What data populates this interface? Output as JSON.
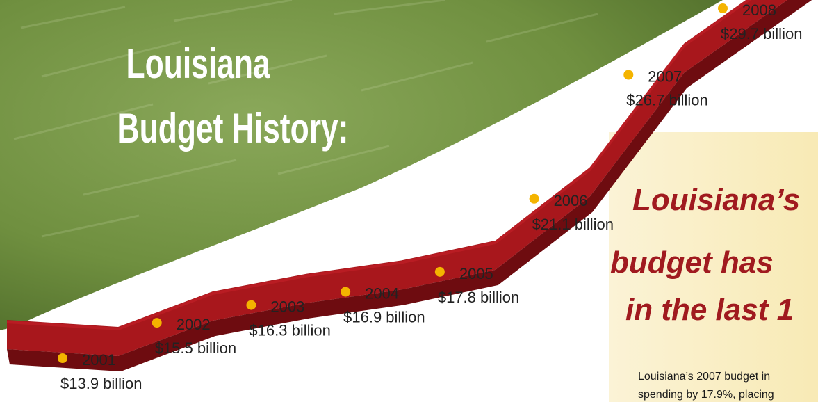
{
  "title_lines": [
    "Louisiana",
    "Budget History:"
  ],
  "headline_lines": [
    "Louisiana’s",
    "budget has",
    "in the last 1"
  ],
  "body_lines": [
    "Louisiana’s 2007 budget in",
    "spending by 17.9%, placing"
  ],
  "colors": {
    "ribbon_top": "#a8171c",
    "ribbon_front": "#6e0c10",
    "ribbon_highlight": "#c42028",
    "marker": "#f4b400",
    "green_bg": "#6f8f3f",
    "panel_bg": "#fbf2cf",
    "headline": "#a01a1f"
  },
  "chart_data": {
    "type": "line",
    "title": "Louisiana Budget History:",
    "x": [
      2001,
      2002,
      2003,
      2004,
      2005,
      2006,
      2007,
      2008
    ],
    "values": [
      13.9,
      15.5,
      16.3,
      16.9,
      17.8,
      21.1,
      26.7,
      29.7
    ],
    "year_labels": [
      "2001",
      "2002",
      "2003",
      "2004",
      "2005",
      "2006",
      "2007",
      "2008"
    ],
    "value_labels": [
      "$13.9 billion",
      "$15.5 billion",
      "$16.3 billion",
      "$16.9 billion",
      "$17.8 billion",
      "$21.1 billion",
      "$26.7 billion",
      "$29.7 billion"
    ],
    "ylim": [
      13.9,
      29.7
    ],
    "grid": false,
    "legend": "none"
  }
}
